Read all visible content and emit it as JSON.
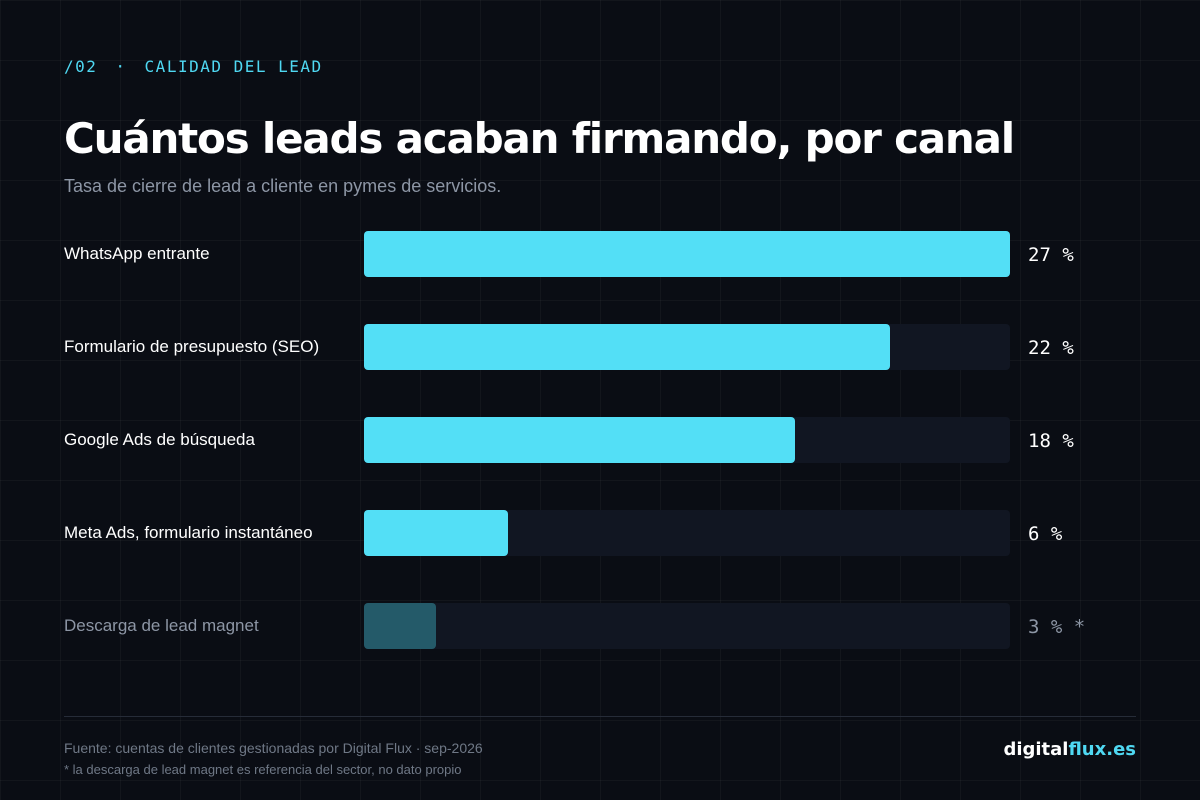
{
  "header": {
    "section_number": "/02",
    "separator": "·",
    "section_title": "CALIDAD DEL LEAD",
    "title": "Cuántos leads acaban firmando, por canal",
    "subtitle": "Tasa de cierre de lead a cliente en pymes de servicios."
  },
  "chart_data": {
    "type": "bar",
    "orientation": "horizontal",
    "categories": [
      "WhatsApp entrante",
      "Formulario de presupuesto (SEO)",
      "Google Ads de búsqueda",
      "Meta Ads, formulario instantáneo",
      "Descarga de lead magnet"
    ],
    "values": [
      27,
      22,
      18,
      6,
      3
    ],
    "value_labels": [
      "27 %",
      "22 %",
      "18 %",
      "6 %",
      "3 % *"
    ],
    "muted": [
      false,
      false,
      false,
      false,
      true
    ],
    "xlim": [
      0,
      27
    ],
    "unit": "%",
    "grid": false,
    "colors": {
      "bar": "#53dff6",
      "bar_muted": "#245a69",
      "track": "#111622"
    }
  },
  "footer": {
    "source": "Fuente: cuentas de clientes gestionadas por Digital Flux · sep-2026",
    "footnote": "* la descarga de lead magnet es referencia del sector, no dato propio",
    "brand_part1": "digital",
    "brand_part2": "flux.es"
  },
  "colors": {
    "background": "#0a0d14",
    "accent": "#4fd8f2",
    "muted_text": "#8d96a5"
  }
}
